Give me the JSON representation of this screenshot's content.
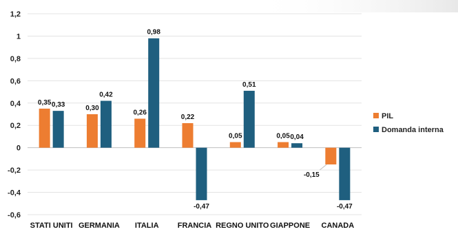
{
  "chart_data": {
    "type": "bar",
    "categories": [
      "STATI UNITI",
      "GERMANIA",
      "ITALIA",
      "FRANCIA",
      "REGNO UNITO",
      "GIAPPONE",
      "CANADA"
    ],
    "series": [
      {
        "name": "PIL",
        "color": "#ED7D31",
        "values": [
          0.35,
          0.3,
          0.26,
          0.22,
          0.05,
          0.05,
          -0.15
        ],
        "labels": [
          "0,35",
          "0,30",
          "0,26",
          "0,22",
          "0,05",
          "0,05",
          "-0,15"
        ]
      },
      {
        "name": "Domanda interna",
        "color": "#1F5F7F",
        "values": [
          0.33,
          0.42,
          0.98,
          -0.47,
          0.51,
          0.04,
          -0.47
        ],
        "labels": [
          "0,33",
          "0,42",
          "0,98",
          "-0,47",
          "0,51",
          "0,04",
          "-0,47"
        ]
      }
    ],
    "ylim": [
      -0.6,
      1.2
    ],
    "yticks": [
      -0.6,
      -0.4,
      -0.2,
      0,
      0.2,
      0.4,
      0.6,
      0.8,
      1,
      1.2
    ],
    "ytick_labels": [
      "-0,6",
      "-0,4",
      "-0,2",
      "0",
      "0,2",
      "0,4",
      "0,6",
      "0,8",
      "1",
      "1,2"
    ],
    "title": "",
    "xlabel": "",
    "ylabel": "",
    "grid": true,
    "legend_position": "right"
  }
}
